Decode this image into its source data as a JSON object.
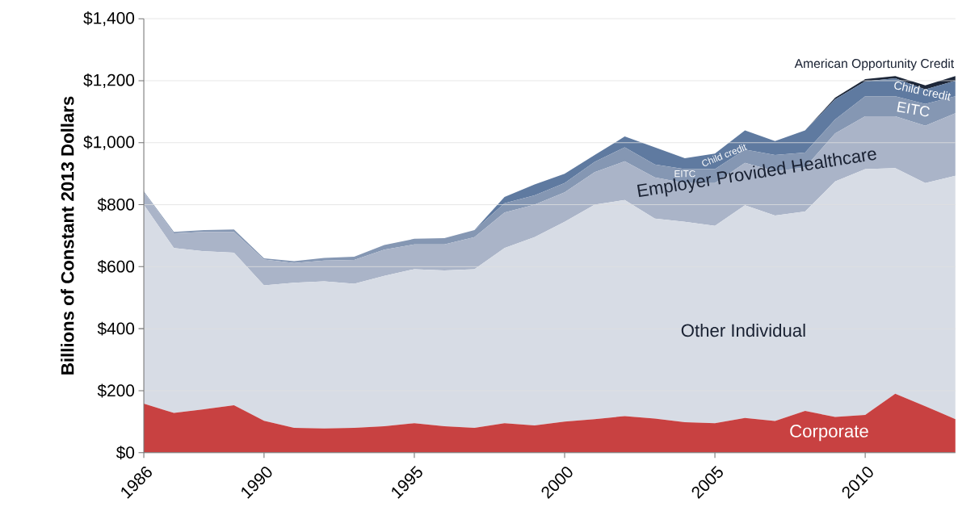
{
  "chart_data": {
    "type": "area",
    "stacked": true,
    "ylabel": "Billions of Constant 2013 Dollars",
    "x": [
      1986,
      1987,
      1988,
      1989,
      1990,
      1991,
      1992,
      1993,
      1994,
      1995,
      1996,
      1997,
      1998,
      1999,
      2000,
      2001,
      2002,
      2003,
      2004,
      2005,
      2006,
      2007,
      2008,
      2009,
      2010,
      2011,
      2012,
      2013
    ],
    "xlim": [
      1986,
      2013
    ],
    "xticks": [
      1986,
      1990,
      1995,
      2000,
      2005,
      2010
    ],
    "ylim": [
      0,
      1400
    ],
    "yticks": [
      {
        "value": 0,
        "label": "$0"
      },
      {
        "value": 200,
        "label": "$200"
      },
      {
        "value": 400,
        "label": "$400"
      },
      {
        "value": 600,
        "label": "$600"
      },
      {
        "value": 800,
        "label": "$800"
      },
      {
        "value": 1000,
        "label": "$1,000"
      },
      {
        "value": 1200,
        "label": "$1,200"
      },
      {
        "value": 1400,
        "label": "$1,400"
      }
    ],
    "grid": "y",
    "series": [
      {
        "name": "Corporate",
        "color": "#c84141",
        "values": [
          158,
          128,
          140,
          153,
          103,
          80,
          78,
          80,
          85,
          95,
          85,
          80,
          95,
          88,
          100,
          108,
          118,
          110,
          98,
          95,
          112,
          102,
          135,
          115,
          122,
          190,
          150,
          108
        ]
      },
      {
        "name": "Other Individual",
        "color": "#d7dce5",
        "values": [
          642,
          532,
          510,
          492,
          437,
          468,
          475,
          465,
          485,
          497,
          503,
          512,
          565,
          607,
          645,
          692,
          697,
          645,
          647,
          637,
          686,
          663,
          643,
          760,
          793,
          728,
          720,
          785
        ]
      },
      {
        "name": "Employer Provided Healthcare",
        "color": "#aab4c8",
        "values": [
          40,
          48,
          62,
          67,
          83,
          64,
          67,
          77,
          85,
          80,
          84,
          103,
          115,
          105,
          95,
          105,
          125,
          133,
          125,
          138,
          137,
          143,
          142,
          155,
          170,
          167,
          185,
          202
        ]
      },
      {
        "name": "EITC",
        "color": "#8597b3",
        "values": [
          3,
          4,
          6,
          8,
          4,
          6,
          8,
          10,
          15,
          18,
          20,
          23,
          30,
          30,
          30,
          33,
          45,
          42,
          45,
          45,
          43,
          52,
          48,
          45,
          65,
          65,
          70,
          55
        ]
      },
      {
        "name": "Child credit",
        "color": "#5f7aa0",
        "values": [
          0,
          0,
          0,
          0,
          0,
          0,
          0,
          0,
          0,
          0,
          0,
          0,
          20,
          35,
          30,
          22,
          35,
          55,
          35,
          50,
          62,
          45,
          72,
          65,
          48,
          58,
          47,
          50
        ]
      },
      {
        "name": "American Opportunity Credit",
        "color": "#1c2638",
        "values": [
          0,
          0,
          0,
          0,
          0,
          0,
          0,
          0,
          0,
          0,
          0,
          0,
          0,
          0,
          0,
          0,
          0,
          0,
          0,
          0,
          0,
          0,
          0,
          5,
          7,
          7,
          13,
          15
        ]
      }
    ],
    "annotations": [
      "EITC",
      "Child credit"
    ]
  }
}
